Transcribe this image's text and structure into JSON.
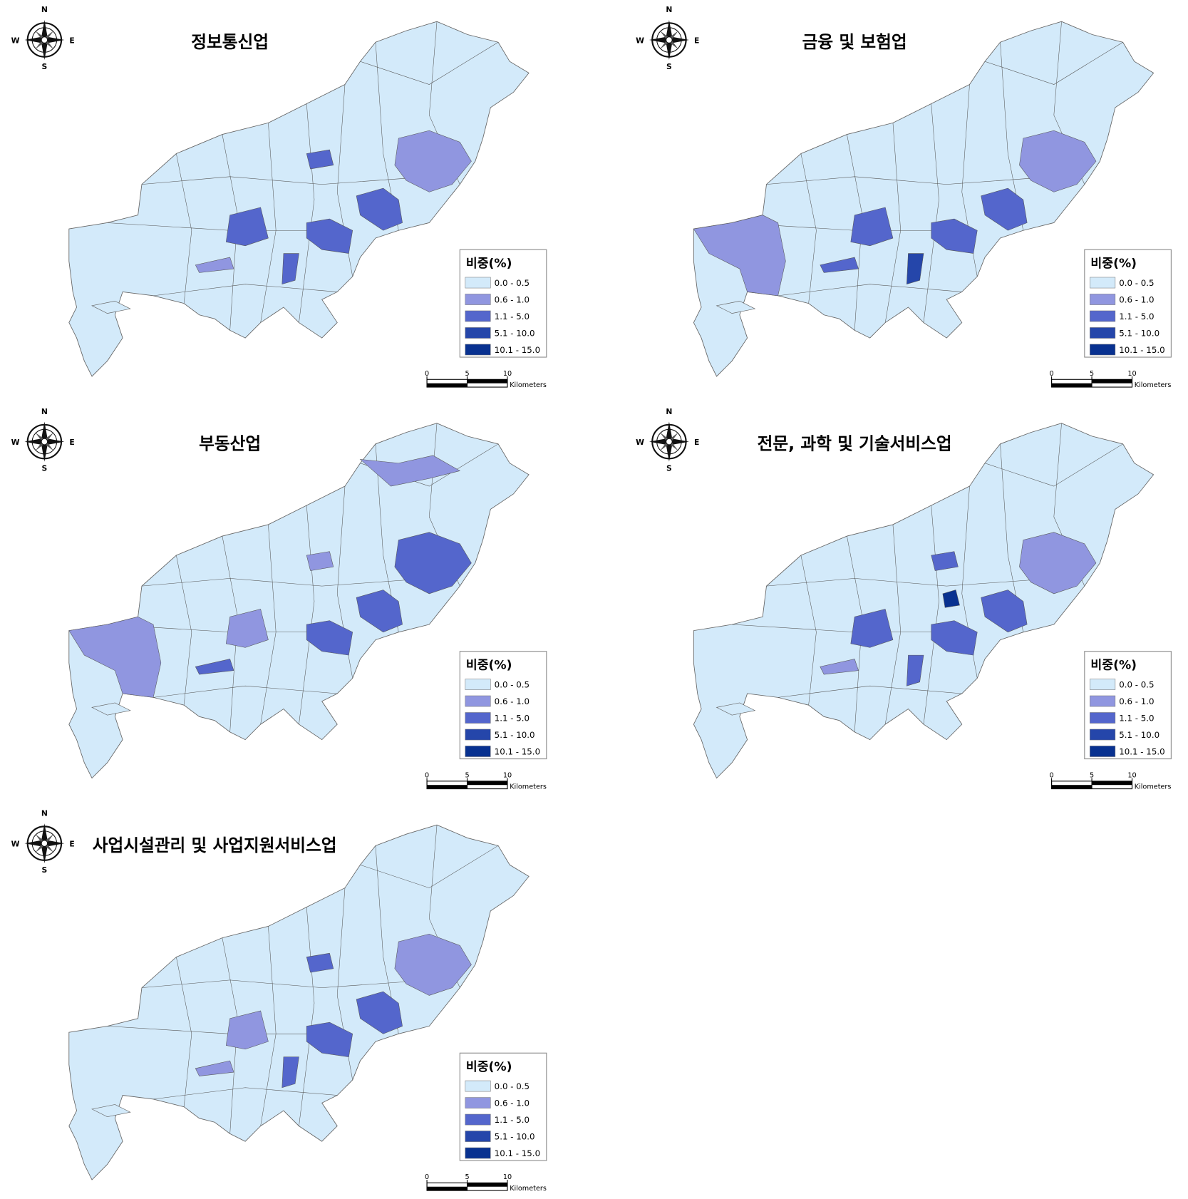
{
  "compass": {
    "n": "N",
    "s": "S",
    "e": "E",
    "w": "W"
  },
  "legend": {
    "title": "비중(%)",
    "classes": [
      {
        "label": "0.0 - 0.5",
        "color": "#d3eafa"
      },
      {
        "label": "0.6 - 1.0",
        "color": "#9096e0"
      },
      {
        "label": "1.1 - 5.0",
        "color": "#5466cc"
      },
      {
        "label": "5.1 - 10.0",
        "color": "#2546aa"
      },
      {
        "label": "10.1 - 15.0",
        "color": "#083190"
      }
    ]
  },
  "scale_bar": {
    "ticks": [
      0,
      5,
      10
    ],
    "unit": "Kilometers"
  },
  "maps": [
    {
      "title": "정보통신업"
    },
    {
      "title": "금융 및 보험업"
    },
    {
      "title": "부동산업"
    },
    {
      "title": "전문, 과학 및 기술서비스업"
    },
    {
      "title": "사업시설관리 및 사업지원서비스업"
    }
  ]
}
